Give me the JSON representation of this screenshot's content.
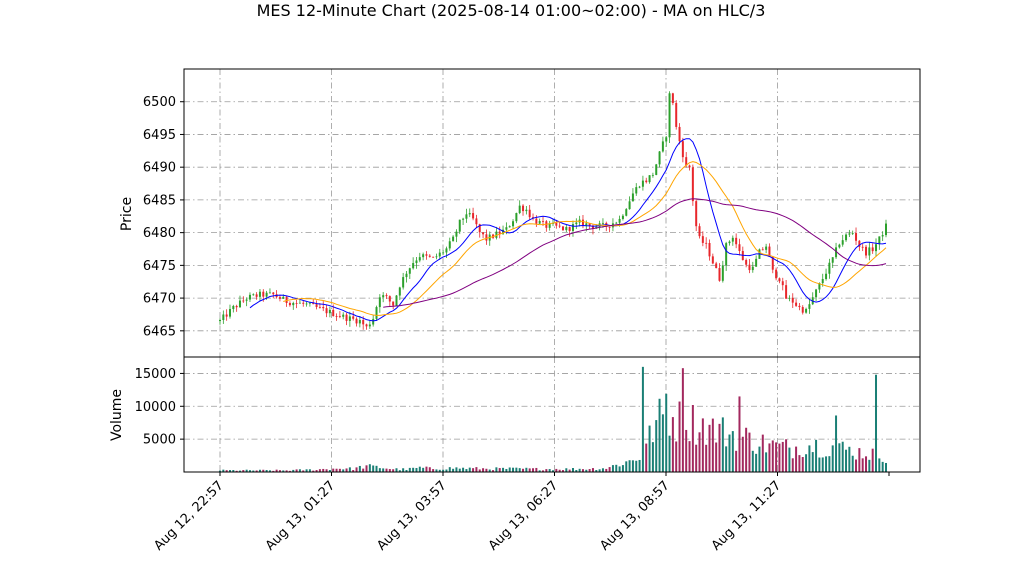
{
  "chart_data": {
    "type": "candlestick",
    "title": "MES 12-Minute Chart (2025-08-14 01:00~02:00) - MA on HLC/3",
    "price_panel": {
      "ylabel": "Price",
      "ylim": [
        6461,
        6505
      ],
      "yticks": [
        6465,
        6470,
        6475,
        6480,
        6485,
        6490,
        6495,
        6500
      ]
    },
    "volume_panel": {
      "ylabel": "Volume",
      "ylim": [
        0,
        17500
      ],
      "yticks": [
        5000,
        10000,
        15000
      ]
    },
    "x_tick_labels": [
      "Aug 12, 22:57",
      "Aug 13, 01:27",
      "Aug 13, 03:57",
      "Aug 13, 06:27",
      "Aug 13, 08:57",
      "Aug 13, 11:27"
    ],
    "bar_interval_minutes": 12,
    "grid": true,
    "grid_style": "dash-dot",
    "colors": {
      "up": "#2ca02c",
      "down": "#e8262b",
      "volume_up": "#1a7f75",
      "volume_down": "#a3285e",
      "ma_fast": "#0000ff",
      "ma_mid": "#ffa500",
      "ma_slow": "#800080"
    },
    "close_path": [
      [
        0,
        6466.5
      ],
      [
        4,
        6468.5
      ],
      [
        8,
        6470
      ],
      [
        12,
        6470.5
      ],
      [
        16,
        6470.5
      ],
      [
        20,
        6469.5
      ],
      [
        26,
        6469
      ],
      [
        32,
        6468
      ],
      [
        38,
        6467
      ],
      [
        42,
        6466.5
      ],
      [
        44,
        6465.5
      ],
      [
        46,
        6467
      ],
      [
        48,
        6470.5
      ],
      [
        50,
        6470
      ],
      [
        52,
        6469
      ],
      [
        54,
        6472
      ],
      [
        56,
        6474
      ],
      [
        58,
        6475.5
      ],
      [
        60,
        6476.5
      ],
      [
        64,
        6476
      ],
      [
        68,
        6477.5
      ],
      [
        70,
        6479
      ],
      [
        72,
        6481.5
      ],
      [
        74,
        6483
      ],
      [
        76,
        6482
      ],
      [
        78,
        6480
      ],
      [
        80,
        6479
      ],
      [
        82,
        6479.5
      ],
      [
        86,
        6480.5
      ],
      [
        88,
        6482
      ],
      [
        90,
        6484
      ],
      [
        92,
        6483.5
      ],
      [
        94,
        6482
      ],
      [
        96,
        6481.5
      ],
      [
        98,
        6481
      ],
      [
        100,
        6481
      ],
      [
        104,
        6480.5
      ],
      [
        108,
        6481.5
      ],
      [
        112,
        6481
      ],
      [
        116,
        6481
      ],
      [
        120,
        6482
      ],
      [
        122,
        6484
      ],
      [
        124,
        6486
      ],
      [
        126,
        6487.5
      ],
      [
        128,
        6488
      ],
      [
        130,
        6489
      ],
      [
        132,
        6492
      ],
      [
        134,
        6495
      ],
      [
        135,
        6501
      ],
      [
        136,
        6500
      ],
      [
        137,
        6496
      ],
      [
        138,
        6494
      ],
      [
        139,
        6492
      ],
      [
        140,
        6490
      ],
      [
        141,
        6490
      ],
      [
        142,
        6485
      ],
      [
        143,
        6481
      ],
      [
        144,
        6479
      ],
      [
        146,
        6478
      ],
      [
        148,
        6475.5
      ],
      [
        150,
        6473
      ],
      [
        152,
        6478
      ],
      [
        154,
        6479.5
      ],
      [
        156,
        6477
      ],
      [
        158,
        6475
      ],
      [
        160,
        6474.5
      ],
      [
        162,
        6477
      ],
      [
        164,
        6478
      ],
      [
        166,
        6474
      ],
      [
        168,
        6473
      ],
      [
        170,
        6470
      ],
      [
        172,
        6469.5
      ],
      [
        174,
        6468.5
      ],
      [
        176,
        6468
      ],
      [
        178,
        6470
      ],
      [
        180,
        6472
      ],
      [
        182,
        6474
      ],
      [
        184,
        6476
      ],
      [
        186,
        6478.5
      ],
      [
        188,
        6479.5
      ],
      [
        190,
        6480
      ],
      [
        192,
        6478
      ],
      [
        194,
        6477
      ],
      [
        196,
        6477.5
      ],
      [
        198,
        6479
      ],
      [
        200,
        6481
      ]
    ],
    "volume_profile": [
      [
        0,
        250
      ],
      [
        20,
        250
      ],
      [
        28,
        350
      ],
      [
        32,
        450
      ],
      [
        36,
        550
      ],
      [
        40,
        500
      ],
      [
        44,
        900
      ],
      [
        48,
        700
      ],
      [
        52,
        450
      ],
      [
        56,
        400
      ],
      [
        60,
        650
      ],
      [
        64,
        500
      ],
      [
        70,
        600
      ],
      [
        80,
        500
      ],
      [
        88,
        500
      ],
      [
        96,
        450
      ],
      [
        104,
        450
      ],
      [
        112,
        500
      ],
      [
        116,
        600
      ],
      [
        120,
        1200
      ],
      [
        124,
        1800
      ],
      [
        126,
        2300
      ],
      [
        128,
        4000
      ],
      [
        130,
        6500
      ],
      [
        132,
        8000
      ],
      [
        134,
        9000
      ],
      [
        136,
        8200
      ],
      [
        138,
        7800
      ],
      [
        140,
        8000
      ],
      [
        144,
        7200
      ],
      [
        148,
        6500
      ],
      [
        152,
        6000
      ],
      [
        156,
        5500
      ],
      [
        160,
        4800
      ],
      [
        164,
        4200
      ],
      [
        168,
        3800
      ],
      [
        172,
        3600
      ],
      [
        176,
        4200
      ],
      [
        180,
        4000
      ],
      [
        184,
        3800
      ],
      [
        188,
        3400
      ],
      [
        192,
        3000
      ],
      [
        196,
        2800
      ],
      [
        200,
        2400
      ]
    ],
    "volume_spikes": [
      [
        127,
        16000
      ],
      [
        139,
        15800
      ],
      [
        156,
        11500
      ],
      [
        197,
        14800
      ],
      [
        185,
        8600
      ],
      [
        134,
        11900
      ]
    ],
    "moving_averages": [
      {
        "key": "fast",
        "period": 10
      },
      {
        "key": "mid",
        "period": 20
      },
      {
        "key": "slow",
        "period": 50
      }
    ],
    "bar_count": 201
  }
}
